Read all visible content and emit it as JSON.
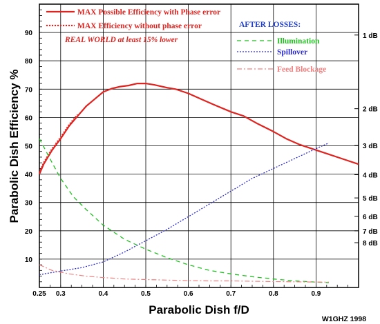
{
  "chart_data": {
    "type": "line",
    "xlabel": "Parabolic Dish f/D",
    "ylabel": "Parabolic Dish Efficiency %",
    "xlim": [
      0.25,
      1.0
    ],
    "ylim": [
      0,
      100
    ],
    "x_ticks": [
      0.25,
      0.3,
      0.4,
      0.5,
      0.6,
      0.7,
      0.8,
      0.9
    ],
    "x_tick_labels": [
      "0.25",
      "0.3",
      "0.4",
      "0.5",
      "0.6",
      "0.7",
      "0.8",
      "0.9"
    ],
    "y_ticks": [
      10,
      20,
      30,
      40,
      50,
      60,
      70,
      80,
      90
    ],
    "y_tick_labels": [
      "10",
      "20",
      "30",
      "40",
      "50",
      "60",
      "70",
      "80",
      "90"
    ],
    "right_axis": {
      "ticks": [
        {
          "label": "1 dB",
          "value": 89.1
        },
        {
          "label": "2 dB",
          "value": 63.1
        },
        {
          "label": "3 dB",
          "value": 50.1
        },
        {
          "label": "4 dB",
          "value": 39.8
        },
        {
          "label": "5 dB",
          "value": 31.6
        },
        {
          "label": "6 dB",
          "value": 25.1
        },
        {
          "label": "7 dB",
          "value": 20.0
        },
        {
          "label": "8 dB",
          "value": 15.8
        }
      ]
    },
    "grid": true,
    "legend_position": "top",
    "annotations": {
      "after_losses": "AFTER LOSSES:",
      "real_world": "REAL WORLD at least 15% lower",
      "credit": "W1GHZ 1998"
    },
    "series": [
      {
        "name": "MAX Possible Efficiency with Phase error",
        "color": "#e0231f",
        "style": "solid",
        "x": [
          0.25,
          0.26,
          0.27,
          0.28,
          0.29,
          0.3,
          0.32,
          0.34,
          0.36,
          0.38,
          0.4,
          0.42,
          0.44,
          0.46,
          0.48,
          0.5,
          0.52,
          0.55,
          0.57,
          0.6,
          0.63,
          0.66,
          0.7,
          0.73,
          0.76,
          0.8,
          0.83,
          0.86,
          0.9,
          0.93,
          0.96,
          1.0
        ],
        "values": [
          40.0,
          43.5,
          46.0,
          48.5,
          50.5,
          52.5,
          57.0,
          60.5,
          64.0,
          66.5,
          69.0,
          70.2,
          70.9,
          71.3,
          72.0,
          72.0,
          71.5,
          70.5,
          70.0,
          68.5,
          66.5,
          64.5,
          62.0,
          60.5,
          58.0,
          55.0,
          52.5,
          50.5,
          48.5,
          47.0,
          45.5,
          43.5
        ]
      },
      {
        "name": "MAX Efficiency without phase error",
        "color": "#e0231f",
        "style": "dotted",
        "x": [
          0.25,
          0.26,
          0.27,
          0.28,
          0.29,
          0.3,
          0.32,
          0.34
        ],
        "values": [
          40.5,
          44.0,
          46.5,
          49.0,
          51.0,
          53.0,
          57.5,
          61.0
        ]
      },
      {
        "name": "Illumination",
        "color": "#1fbf1f",
        "style": "dashed",
        "x": [
          0.25,
          0.28,
          0.3,
          0.33,
          0.36,
          0.4,
          0.45,
          0.5,
          0.55,
          0.6,
          0.65,
          0.7,
          0.75,
          0.8,
          0.85,
          0.9,
          0.93
        ],
        "values": [
          52.5,
          44.0,
          38.5,
          32.0,
          27.5,
          22.0,
          17.0,
          13.5,
          10.5,
          8.0,
          6.0,
          4.8,
          3.8,
          3.0,
          2.3,
          1.9,
          1.7
        ]
      },
      {
        "name": "Spillover",
        "color": "#2a2ad0",
        "style": "dotted",
        "x": [
          0.25,
          0.3,
          0.35,
          0.4,
          0.45,
          0.5,
          0.55,
          0.6,
          0.65,
          0.7,
          0.75,
          0.8,
          0.85,
          0.9,
          0.93
        ],
        "values": [
          4.5,
          5.8,
          7.0,
          9.0,
          12.5,
          16.5,
          20.5,
          25.0,
          29.5,
          34.0,
          38.5,
          42.0,
          45.5,
          49.0,
          51.0
        ]
      },
      {
        "name": "Feed Blockage",
        "color": "#f08080",
        "style": "dashdot",
        "x": [
          0.25,
          0.28,
          0.32,
          0.36,
          0.4,
          0.45,
          0.5,
          0.55,
          0.6,
          0.65,
          0.7,
          0.75,
          0.8,
          0.85,
          0.9,
          0.93
        ],
        "values": [
          8.0,
          6.0,
          4.8,
          4.0,
          3.5,
          3.0,
          2.8,
          2.6,
          2.4,
          2.3,
          2.3,
          2.2,
          2.1,
          2.0,
          1.9,
          1.9
        ]
      }
    ]
  }
}
